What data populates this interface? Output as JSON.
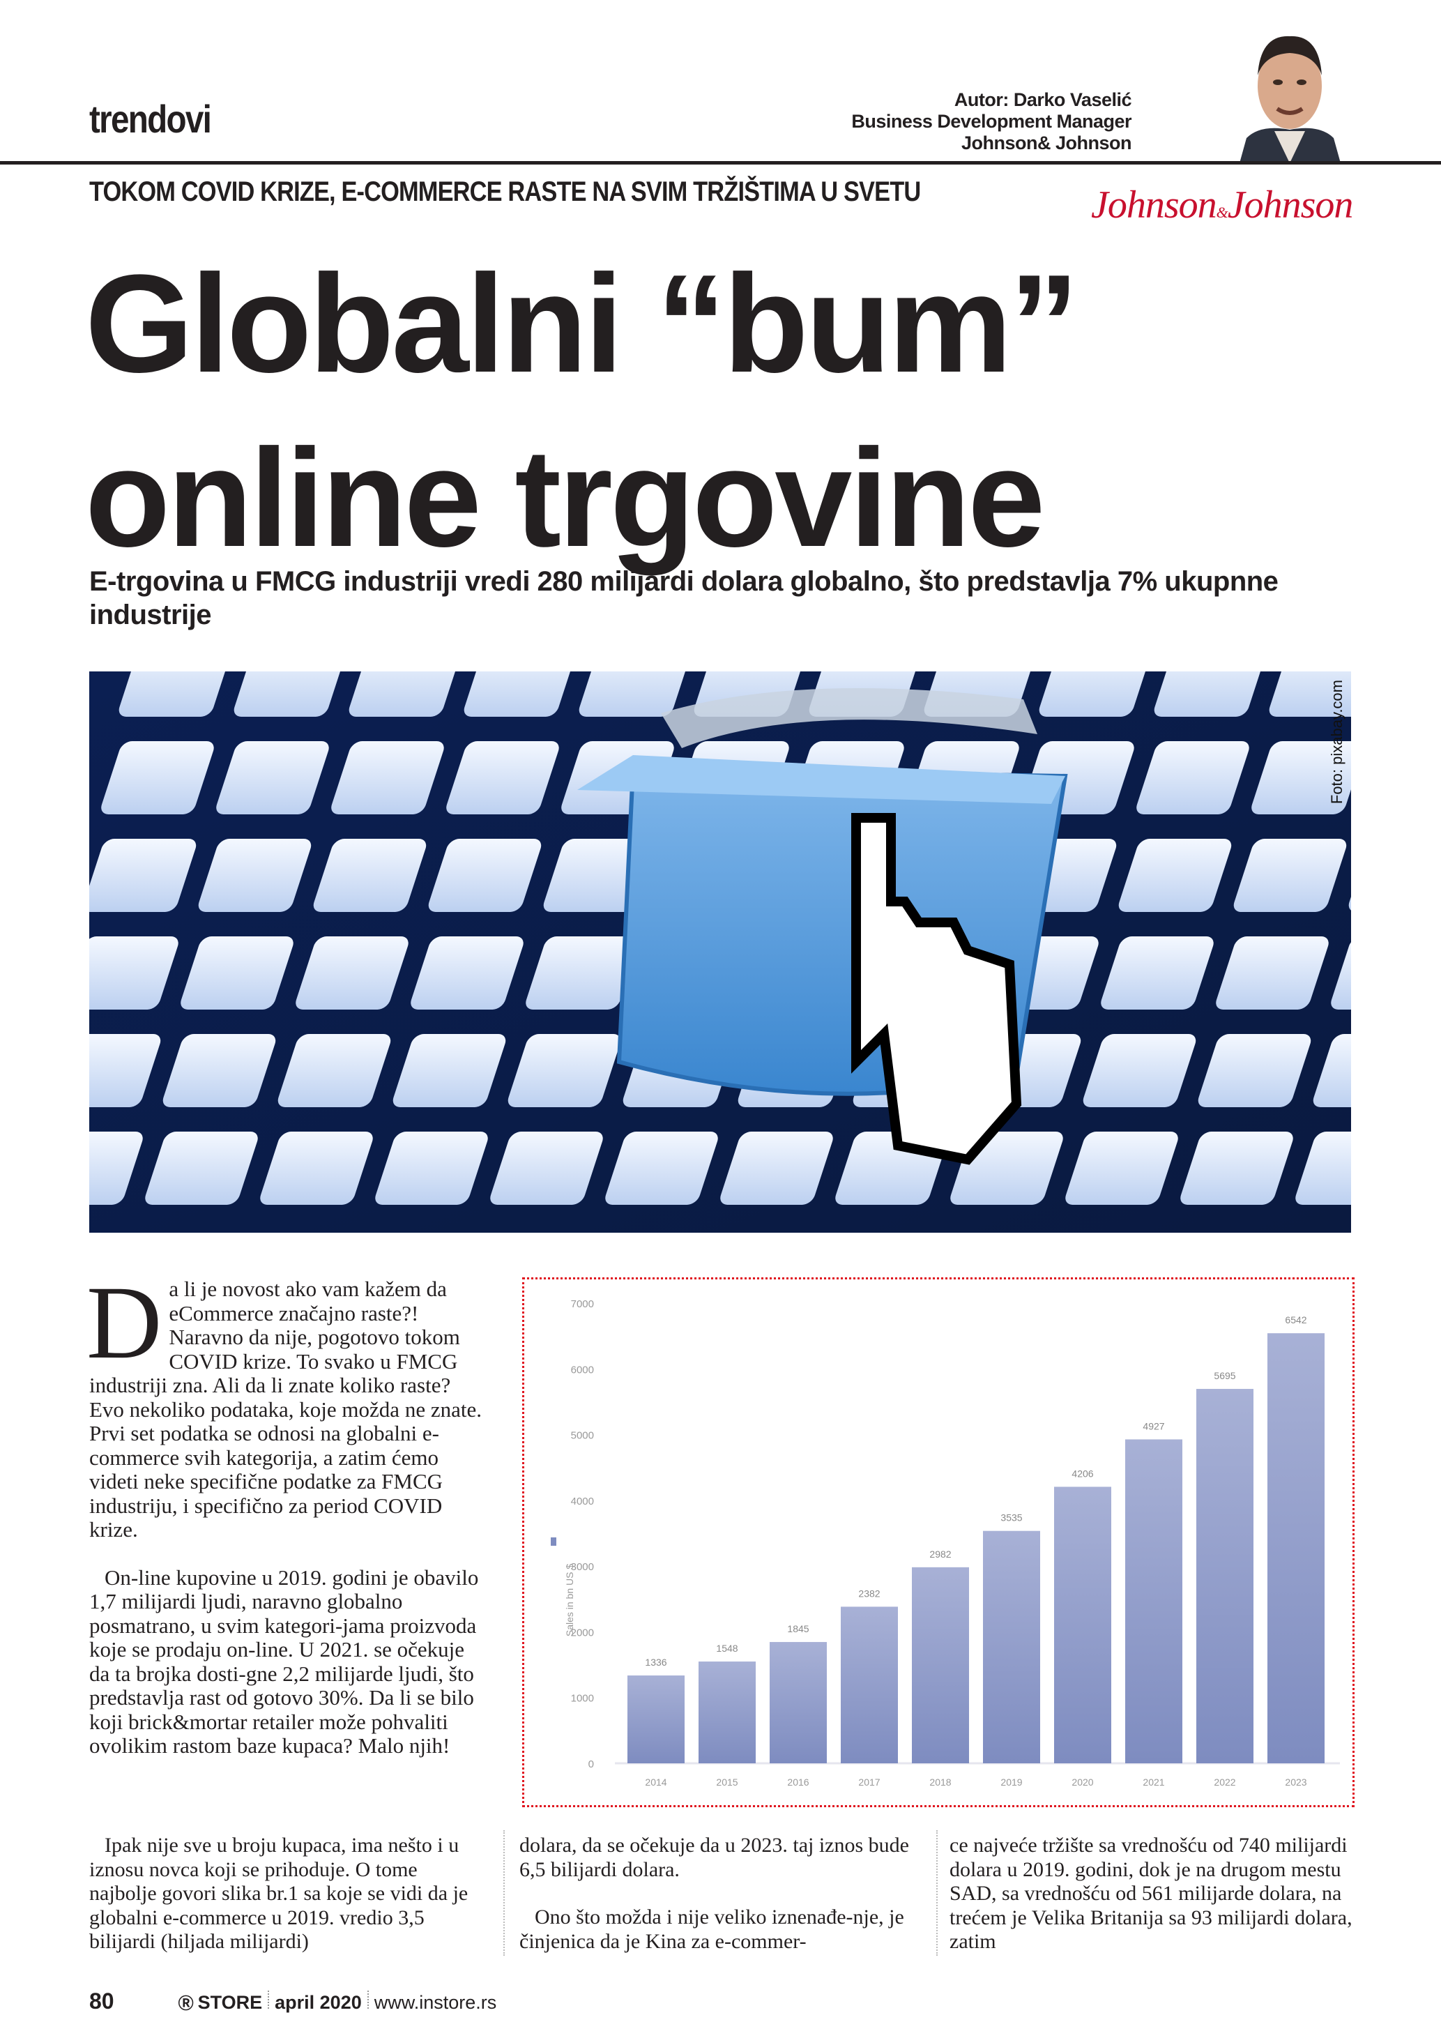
{
  "header": {
    "section": "trendovi",
    "author_line": "Autor: Darko Vaselić",
    "author_role": "Business Development Manager",
    "author_company": "Johnson& Johnson",
    "logo_text": "Johnson & Johnson"
  },
  "article": {
    "kicker": "TOKOM COVID KRIZE, E-COMMERCE RASTE NA SVIM TRŽIŠTIMA U SVETU",
    "title_line1": "Globalni “bum”",
    "title_line2": "online trgovine",
    "deck": "E-trgovina u FMCG industriji vredi 280 milijardi dolara globalno, što predstavlja 7% ukupnne industrije",
    "photo_credit": "Foto: pixabay.com",
    "drop_cap": "D",
    "col1_p1": "a li je novost ako vam kažem da eCommerce značajno raste?! Naravno da nije, pogotovo tokom COVID krize. To svako u FMCG industriji zna. Ali da li znate koliko raste? Evo nekoliko podataka, koje možda ne znate. Prvi set podatka se odnosi na globalni e-commerce svih kategorija, a zatim ćemo videti neke specifične podatke za FMCG industriju, i specifično za period COVID krize.",
    "col1_p2": "On-line kupovine u 2019. godini je obavilo 1,7 milijardi ljudi, naravno globalno posmatrano, u svim kategori-jama proizvoda koje se prodaju on-line. U 2021. se očekuje da ta brojka dosti-gne 2,2 milijarde ljudi, što predstavlja rast od gotovo 30%. Da li se bilo koji brick&mortar retailer može pohvaliti ovolikim rastom baze kupaca? Malo njih!",
    "b1_p1": "Ipak nije sve u broju kupaca, ima nešto i u iznosu novca koji se prihoduje. O tome najbolje govori slika br.1 sa koje se vidi da je globalni e-commerce u 2019. vredio 3,5 bilijardi (hiljada milijardi)",
    "b2_p1": "dolara, da se očekuje da u 2023. taj iznos bude 6,5 bilijardi dolara.",
    "b2_p2": "Ono što možda i nije veliko iznenađe-nje, je činjenica da je Kina za e-commer-",
    "b3_p1": "ce najveće tržište sa vrednošću od 740 milijardi dolara u 2019. godini, dok je na drugom mestu SAD, sa vrednošću od 561 milijarde dolara, na trećem je Velika Britanija sa 93 milijardi dolara, zatim"
  },
  "chart_data": {
    "type": "bar",
    "categories": [
      "2014",
      "2015",
      "2016",
      "2017",
      "2018",
      "2019",
      "2020",
      "2021",
      "2022",
      "2023"
    ],
    "values": [
      1336,
      1548,
      1845,
      2382,
      2982,
      3535,
      4206,
      4927,
      5695,
      6542
    ],
    "value_labels": [
      "1336",
      "1548",
      "1845",
      "2382",
      "2982",
      "3535",
      "4206",
      "4927",
      "5695",
      "6542"
    ],
    "ylabel": "Sales in bn US $",
    "yticks": [
      "0",
      "1000",
      "2000",
      "3000",
      "4000",
      "5000",
      "6000",
      "7000"
    ],
    "ylim": [
      0,
      7000
    ],
    "grid": false,
    "bar_color_top": "#a8b1d6",
    "bar_color_bottom": "#7e8cc0",
    "border_color": "#e0141e"
  },
  "footer": {
    "page_number": "80",
    "magazine": "STORE",
    "issue": "april 2020",
    "website": "www.instore.rs"
  }
}
